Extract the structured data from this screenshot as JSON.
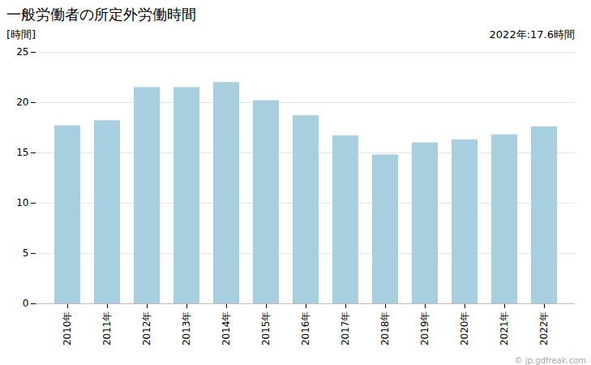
{
  "chart_data": {
    "type": "bar",
    "title": "一般労働者の所定外労働時間",
    "ylabel": "[時間]",
    "annotations": [
      "2022年:17.6時間",
      "© jp.gdfreak.com"
    ],
    "categories": [
      "2010年",
      "2011年",
      "2012年",
      "2013年",
      "2014年",
      "2015年",
      "2016年",
      "2017年",
      "2018年",
      "2019年",
      "2020年",
      "2021年",
      "2022年"
    ],
    "values": [
      17.7,
      18.2,
      21.5,
      21.5,
      22.0,
      20.2,
      18.7,
      16.7,
      14.8,
      16.0,
      16.3,
      16.8,
      17.6
    ],
    "color": "#a8cfe0",
    "ylim": [
      0,
      25
    ],
    "yticks": [
      0,
      5,
      10,
      15,
      20,
      25
    ],
    "grid": true
  }
}
